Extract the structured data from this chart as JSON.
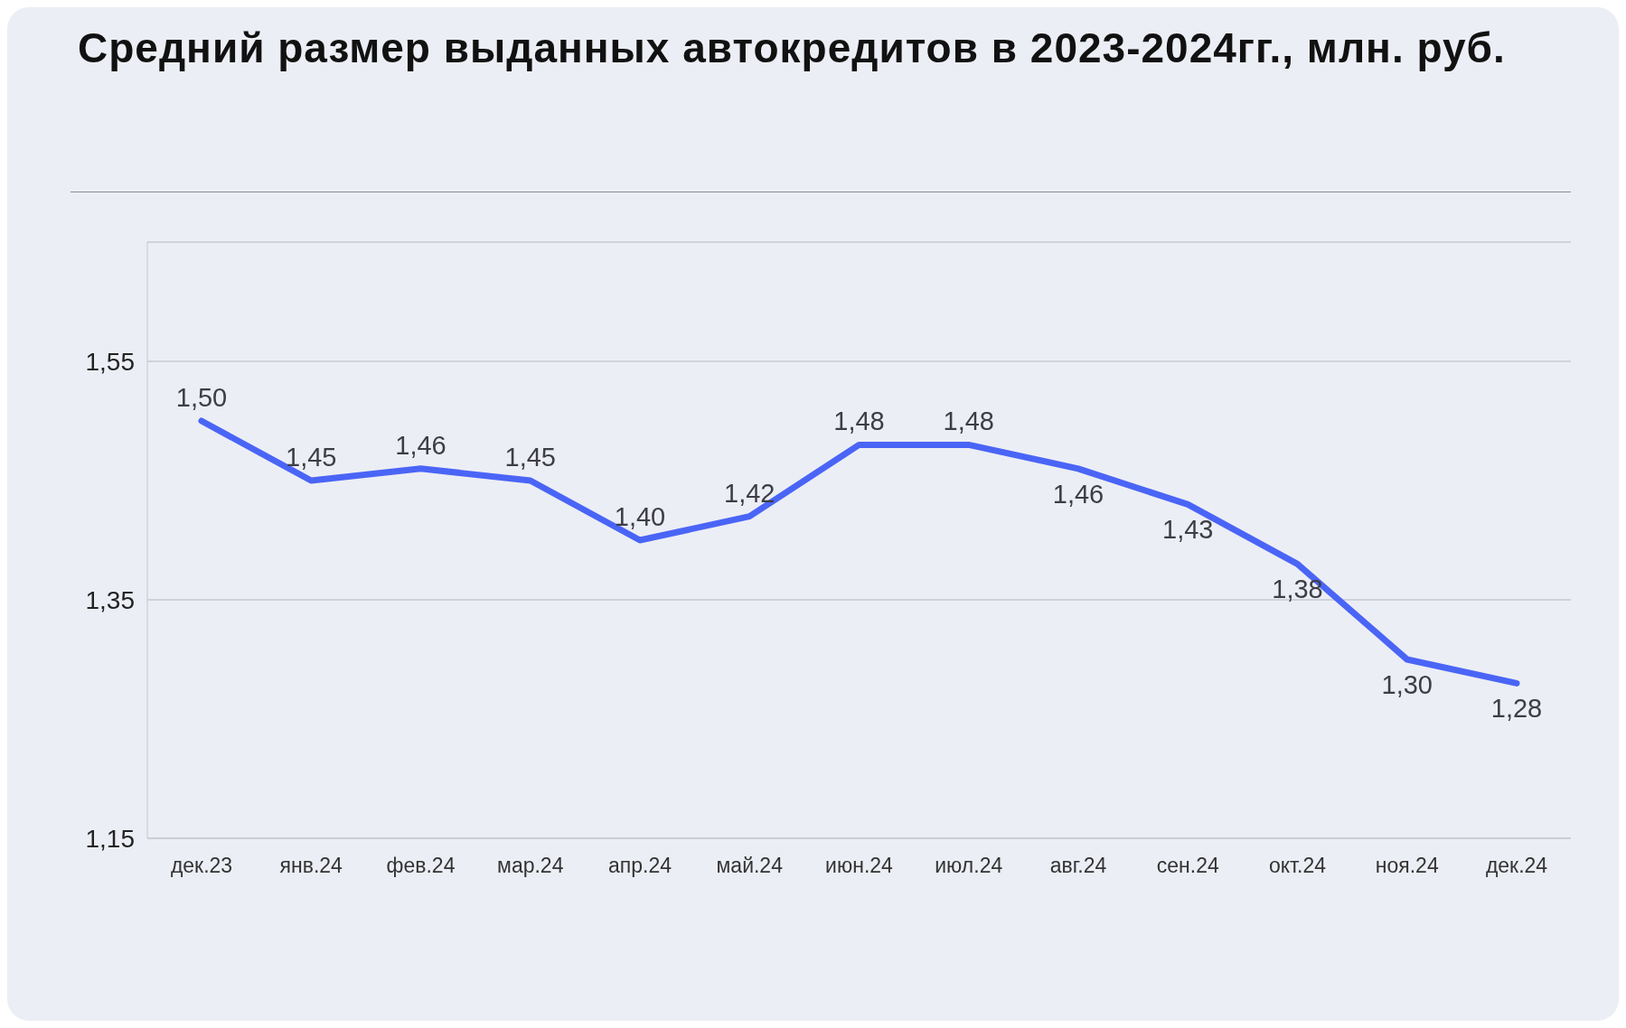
{
  "chart_data": {
    "type": "line",
    "title": "Средний размер выданных автокредитов в 2023-2024гг., млн. руб.",
    "categories": [
      "дек.23",
      "янв.24",
      "фев.24",
      "мар.24",
      "апр.24",
      "май.24",
      "июн.24",
      "июл.24",
      "авг.24",
      "сен.24",
      "окт.24",
      "ноя.24",
      "дек.24"
    ],
    "series": [
      {
        "color": "#4a65f6",
        "values": [
          1.5,
          1.45,
          1.46,
          1.45,
          1.4,
          1.42,
          1.48,
          1.48,
          1.46,
          1.43,
          1.38,
          1.3,
          1.28
        ],
        "value_labels": [
          "1,50",
          "1,45",
          "1,46",
          "1,45",
          "1,40",
          "1,42",
          "1,48",
          "1,48",
          "1,46",
          "1,43",
          "1,38",
          "1,30",
          "1,28"
        ]
      }
    ],
    "ylim": [
      1.15,
      1.65
    ],
    "yticks": [
      {
        "value": 1.15,
        "label": "1,15"
      },
      {
        "value": 1.35,
        "label": "1,35"
      },
      {
        "value": 1.55,
        "label": "1,55"
      }
    ],
    "grid": "y",
    "legend": false,
    "marker": "none",
    "line_style": "solid"
  }
}
